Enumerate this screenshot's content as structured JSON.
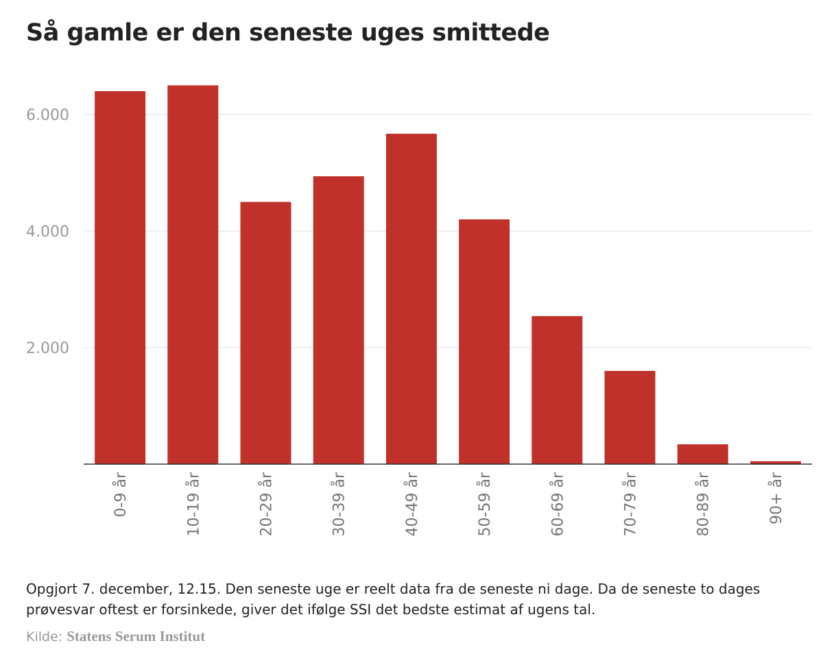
{
  "header": {
    "title": "Så gamle er den seneste uges smittede"
  },
  "chart_data": {
    "type": "bar",
    "title": "Så gamle er den seneste uges smittede",
    "xlabel": "",
    "ylabel": "",
    "categories": [
      "0-9 år",
      "10-19 år",
      "20-29 år",
      "30-39 år",
      "40-49 år",
      "50-59 år",
      "60-69 år",
      "70-79 år",
      "80-89 år",
      "90+ år"
    ],
    "values": [
      6400,
      6500,
      4500,
      4940,
      5670,
      4200,
      2540,
      1600,
      340,
      50
    ],
    "yticks": [
      2000,
      4000,
      6000
    ],
    "ytick_labels": [
      "2.000",
      "4.000",
      "6.000"
    ],
    "ylim": [
      0,
      6600
    ],
    "grid": true,
    "bar_color": "#c0312b"
  },
  "footer": {
    "note": "Opgjort 7. december, 12.15. Den seneste uge er reelt data fra de seneste ni dage. Da de seneste to dages prøvesvar oftest er forsinkede, giver det ifølge SSI det bedste estimat af ugens tal.",
    "source_label": "Kilde:",
    "source_name": "Statens Serum Institut"
  }
}
